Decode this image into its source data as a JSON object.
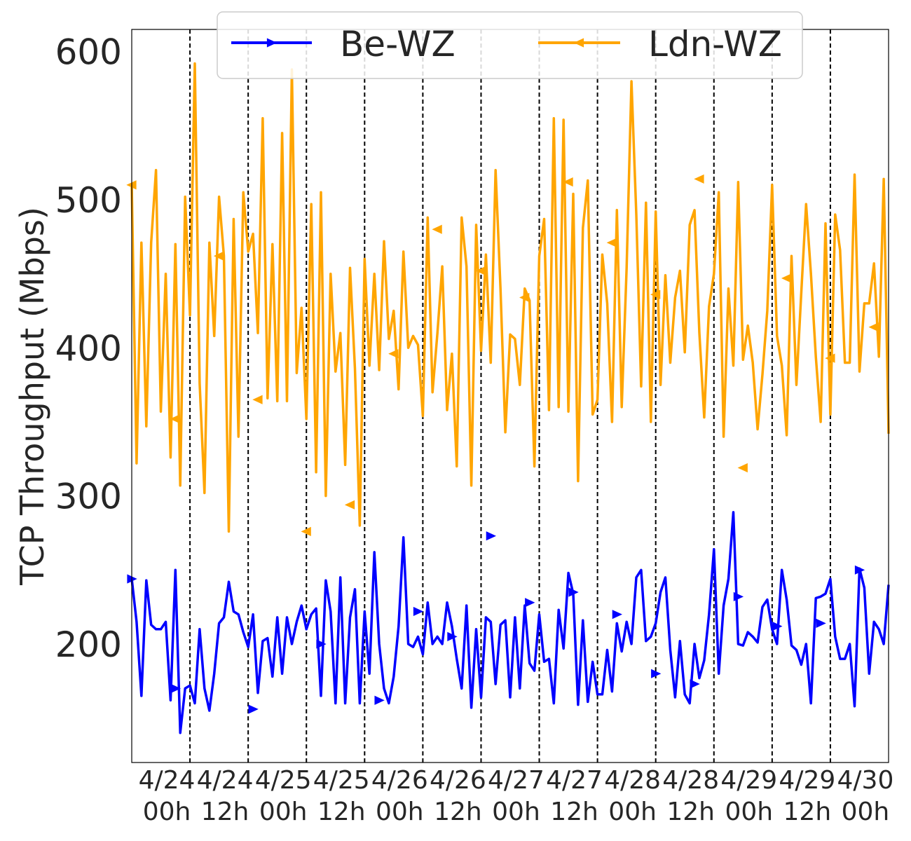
{
  "chart_data": {
    "type": "line",
    "ylabel": "TCP Throughput (Mbps)",
    "xlabel": "",
    "ylim": [
      120,
      615
    ],
    "xlim": [
      0,
      156
    ],
    "x_unit": "hours from 4/24 00h",
    "yticks": [
      200,
      300,
      400,
      500,
      600
    ],
    "xticks": [
      {
        "label": [
          "4/24",
          "00h"
        ],
        "x": 0
      },
      {
        "label": [
          "4/24",
          "12h"
        ],
        "x": 12
      },
      {
        "label": [
          "4/25",
          "00h"
        ],
        "x": 24
      },
      {
        "label": [
          "4/25",
          "12h"
        ],
        "x": 36
      },
      {
        "label": [
          "4/26",
          "00h"
        ],
        "x": 48
      },
      {
        "label": [
          "4/26",
          "12h"
        ],
        "x": 60
      },
      {
        "label": [
          "4/27",
          "00h"
        ],
        "x": 72
      },
      {
        "label": [
          "4/27",
          "12h"
        ],
        "x": 84
      },
      {
        "label": [
          "4/28",
          "00h"
        ],
        "x": 96
      },
      {
        "label": [
          "4/28",
          "12h"
        ],
        "x": 108
      },
      {
        "label": [
          "4/29",
          "00h"
        ],
        "x": 120
      },
      {
        "label": [
          "4/29",
          "12h"
        ],
        "x": 132
      },
      {
        "label": [
          "4/30",
          "00h"
        ],
        "x": 144
      }
    ],
    "vlines": [
      12,
      24,
      36,
      48,
      60,
      72,
      84,
      96,
      108,
      120,
      132,
      144
    ],
    "grid": false,
    "legend": {
      "placement": "top-center"
    },
    "series": [
      {
        "name": "Be-WZ",
        "color": "#0000ff",
        "marker": "triangle-right",
        "x": [
          0,
          1,
          2,
          3,
          4,
          5,
          6,
          7,
          8,
          9,
          10,
          11,
          12,
          13,
          14,
          15,
          16,
          17,
          18,
          19,
          20,
          21,
          22,
          23,
          24,
          25,
          26,
          27,
          28,
          29,
          30,
          31,
          32,
          33,
          34,
          35,
          36,
          37,
          38,
          39,
          40,
          41,
          42,
          43,
          44,
          45,
          46,
          47,
          48,
          49,
          50,
          51,
          52,
          53,
          54,
          55,
          56,
          57,
          58,
          59,
          60,
          61,
          62,
          63,
          64,
          65,
          66,
          67,
          68,
          69,
          70,
          71,
          72,
          73,
          74,
          75,
          76,
          77,
          78,
          79,
          80,
          81,
          82,
          83,
          84,
          85,
          86,
          87,
          88,
          89,
          90,
          91,
          92,
          93,
          94,
          95,
          96,
          97,
          98,
          99,
          100,
          101,
          102,
          103,
          104,
          105,
          106,
          107,
          108,
          109,
          110,
          111,
          112,
          113,
          114,
          115,
          116,
          117,
          118,
          119,
          120,
          121,
          122,
          123,
          124,
          125,
          126,
          127,
          128,
          129,
          130,
          131,
          132,
          133,
          134,
          135,
          136,
          137,
          138,
          139,
          140,
          141,
          142,
          143,
          144,
          145,
          146,
          147,
          148,
          149,
          150,
          151,
          152,
          153,
          154,
          155,
          156
        ],
        "y": [
          244,
          215,
          165,
          243,
          213,
          210,
          210,
          215,
          162,
          250,
          140,
          170,
          172,
          160,
          210,
          170,
          155,
          180,
          214,
          218,
          242,
          222,
          220,
          208,
          198,
          220,
          167,
          202,
          204,
          178,
          218,
          180,
          218,
          200,
          215,
          226,
          210,
          220,
          224,
          165,
          243,
          222,
          160,
          245,
          160,
          218,
          237,
          160,
          222,
          180,
          262,
          200,
          170,
          160,
          178,
          212,
          272,
          200,
          198,
          205,
          193,
          228,
          200,
          205,
          200,
          228,
          212,
          190,
          170,
          226,
          157,
          210,
          164,
          218,
          215,
          173,
          213,
          216,
          164,
          218,
          170,
          226,
          187,
          182,
          220,
          188,
          190,
          160,
          223,
          197,
          248,
          234,
          159,
          216,
          161,
          188,
          166,
          166,
          196,
          168,
          214,
          195,
          215,
          200,
          245,
          250,
          202,
          205,
          214,
          235,
          245,
          196,
          164,
          202,
          166,
          160,
          200,
          177,
          189,
          220,
          264,
          180,
          226,
          244,
          289,
          200,
          199,
          208,
          205,
          201,
          225,
          230,
          210,
          200,
          250,
          230,
          199,
          196,
          186,
          200,
          160,
          231,
          232,
          234,
          244,
          205,
          190,
          190,
          200,
          158,
          251,
          238,
          180,
          215,
          210,
          200,
          240
        ],
        "marker_points": [
          {
            "x": 0,
            "y": 244
          },
          {
            "x": 9,
            "y": 170
          },
          {
            "x": 25,
            "y": 156
          },
          {
            "x": 39,
            "y": 200
          },
          {
            "x": 51,
            "y": 162
          },
          {
            "x": 59,
            "y": 222
          },
          {
            "x": 66,
            "y": 205
          },
          {
            "x": 74,
            "y": 273
          },
          {
            "x": 82,
            "y": 228
          },
          {
            "x": 91,
            "y": 235
          },
          {
            "x": 100,
            "y": 220
          },
          {
            "x": 108,
            "y": 180
          },
          {
            "x": 116,
            "y": 173
          },
          {
            "x": 125,
            "y": 232
          },
          {
            "x": 133,
            "y": 212
          },
          {
            "x": 142,
            "y": 214
          },
          {
            "x": 150,
            "y": 250
          }
        ]
      },
      {
        "name": "Ldn-WZ",
        "color": "#ffa500",
        "marker": "triangle-left",
        "x": [
          0,
          1,
          2,
          3,
          4,
          5,
          6,
          7,
          8,
          9,
          10,
          11,
          12,
          13,
          14,
          15,
          16,
          17,
          18,
          19,
          20,
          21,
          22,
          23,
          24,
          25,
          26,
          27,
          28,
          29,
          30,
          31,
          32,
          33,
          34,
          35,
          36,
          37,
          38,
          39,
          40,
          41,
          42,
          43,
          44,
          45,
          46,
          47,
          48,
          49,
          50,
          51,
          52,
          53,
          54,
          55,
          56,
          57,
          58,
          59,
          60,
          61,
          62,
          63,
          64,
          65,
          66,
          67,
          68,
          69,
          70,
          71,
          72,
          73,
          74,
          75,
          76,
          77,
          78,
          79,
          80,
          81,
          82,
          83,
          84,
          85,
          86,
          87,
          88,
          89,
          90,
          91,
          92,
          93,
          94,
          95,
          96,
          97,
          98,
          99,
          100,
          101,
          102,
          103,
          104,
          105,
          106,
          107,
          108,
          109,
          110,
          111,
          112,
          113,
          114,
          115,
          116,
          117,
          118,
          119,
          120,
          121,
          122,
          123,
          124,
          125,
          126,
          127,
          128,
          129,
          130,
          131,
          132,
          133,
          134,
          135,
          136,
          137,
          138,
          139,
          140,
          141,
          142,
          143,
          144,
          145,
          146,
          147,
          148,
          149,
          150,
          151,
          152,
          153,
          154,
          155,
          156
        ],
        "y": [
          510,
          322,
          471,
          347,
          471,
          520,
          357,
          450,
          326,
          470,
          307,
          502,
          422,
          592,
          376,
          302,
          471,
          408,
          502,
          462,
          276,
          487,
          340,
          505,
          465,
          477,
          410,
          555,
          366,
          470,
          364,
          545,
          364,
          588,
          383,
          427,
          352,
          497,
          316,
          505,
          300,
          450,
          384,
          410,
          321,
          454,
          386,
          280,
          460,
          388,
          450,
          385,
          472,
          406,
          425,
          372,
          465,
          400,
          408,
          402,
          354,
          488,
          370,
          410,
          455,
          358,
          396,
          320,
          488,
          455,
          307,
          483,
          398,
          463,
          390,
          520,
          440,
          343,
          409,
          406,
          375,
          440,
          432,
          320,
          462,
          487,
          358,
          555,
          360,
          554,
          357,
          504,
          310,
          481,
          513,
          355,
          365,
          463,
          430,
          350,
          493,
          360,
          454,
          580,
          490,
          374,
          498,
          350,
          492,
          375,
          449,
          390,
          434,
          452,
          397,
          483,
          493,
          410,
          353,
          428,
          450,
          505,
          340,
          440,
          388,
          512,
          392,
          415,
          390,
          345,
          382,
          425,
          510,
          408,
          388,
          341,
          462,
          375,
          437,
          497,
          450,
          394,
          350,
          484,
          355,
          490,
          466,
          390,
          390,
          517,
          384,
          430,
          430,
          457,
          394,
          514,
          342
        ],
        "marker_points": [
          {
            "x": 0,
            "y": 510
          },
          {
            "x": 9,
            "y": 352
          },
          {
            "x": 18,
            "y": 462
          },
          {
            "x": 26,
            "y": 365
          },
          {
            "x": 36,
            "y": 276
          },
          {
            "x": 45,
            "y": 294
          },
          {
            "x": 54,
            "y": 396
          },
          {
            "x": 63,
            "y": 480
          },
          {
            "x": 72,
            "y": 452
          },
          {
            "x": 81,
            "y": 434
          },
          {
            "x": 90,
            "y": 512
          },
          {
            "x": 99,
            "y": 471
          },
          {
            "x": 108,
            "y": 436
          },
          {
            "x": 117,
            "y": 514
          },
          {
            "x": 126,
            "y": 319
          },
          {
            "x": 135,
            "y": 447
          },
          {
            "x": 144,
            "y": 393
          },
          {
            "x": 153,
            "y": 414
          }
        ]
      }
    ]
  }
}
